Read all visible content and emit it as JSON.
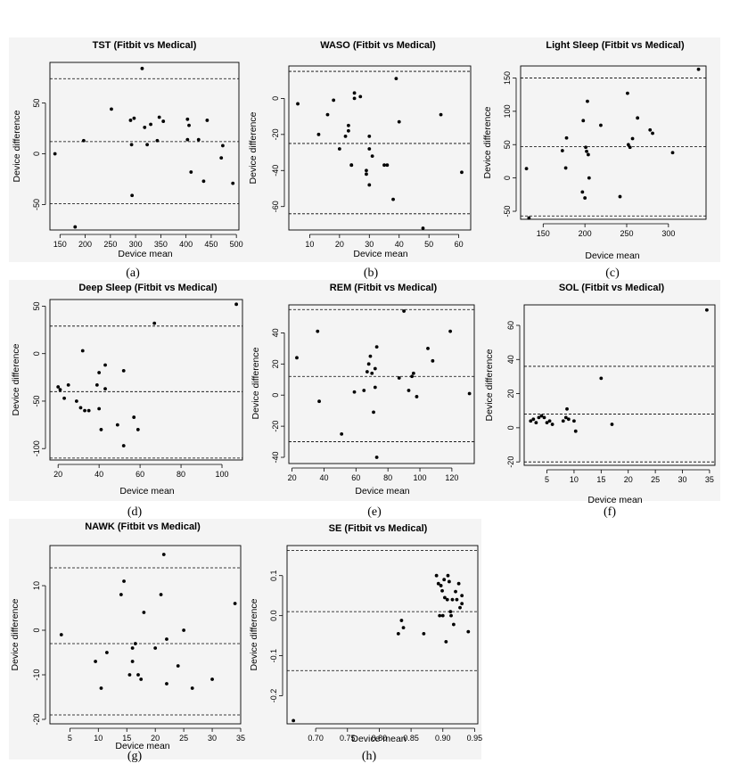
{
  "chart_data": [
    {
      "type": "scatter",
      "title": "TST (Fitbit vs Medical)",
      "xlabel": "Device mean",
      "ylabel": "Device difference",
      "caption": "(a)",
      "xlim": [
        130,
        505
      ],
      "ylim": [
        -75,
        90
      ],
      "xticks": [
        150,
        200,
        250,
        300,
        350,
        400,
        450,
        500
      ],
      "yticks": [
        -50,
        0,
        50
      ],
      "hlines": [
        74,
        12,
        -49
      ],
      "points": [
        [
          140,
          0
        ],
        [
          180,
          -72
        ],
        [
          197,
          13
        ],
        [
          252,
          44
        ],
        [
          290,
          33
        ],
        [
          292,
          9
        ],
        [
          293,
          -41
        ],
        [
          297,
          35
        ],
        [
          313,
          84
        ],
        [
          318,
          26
        ],
        [
          323,
          9
        ],
        [
          330,
          29
        ],
        [
          343,
          13
        ],
        [
          347,
          36
        ],
        [
          355,
          32
        ],
        [
          403,
          34
        ],
        [
          403,
          14
        ],
        [
          406,
          28
        ],
        [
          410,
          -18
        ],
        [
          425,
          14
        ],
        [
          435,
          -27
        ],
        [
          442,
          33
        ],
        [
          470,
          -4
        ],
        [
          473,
          8
        ],
        [
          493,
          -29
        ]
      ]
    },
    {
      "type": "scatter",
      "title": "WASO (Fitbit vs Medical)",
      "xlabel": "Device mean",
      "ylabel": "Device difference",
      "caption": "(b)",
      "xlim": [
        3,
        64
      ],
      "ylim": [
        -73,
        18
      ],
      "xticks": [
        10,
        20,
        30,
        40,
        50,
        60
      ],
      "yticks": [
        -60,
        -40,
        -20,
        0
      ],
      "hlines": [
        15,
        -25,
        -64
      ],
      "points": [
        [
          6,
          -3
        ],
        [
          13,
          -20
        ],
        [
          16,
          -9
        ],
        [
          18,
          -1
        ],
        [
          20,
          -28
        ],
        [
          22,
          -21
        ],
        [
          23,
          -15
        ],
        [
          23,
          -18
        ],
        [
          24,
          -37
        ],
        [
          24,
          -37
        ],
        [
          25,
          3
        ],
        [
          25,
          0
        ],
        [
          27,
          1
        ],
        [
          29,
          -42
        ],
        [
          29,
          -40
        ],
        [
          30,
          -28
        ],
        [
          30,
          -21
        ],
        [
          30,
          -48
        ],
        [
          31,
          -32
        ],
        [
          35,
          -37
        ],
        [
          36,
          -37
        ],
        [
          38,
          -56
        ],
        [
          39,
          11
        ],
        [
          40,
          -13
        ],
        [
          48,
          -72
        ],
        [
          54,
          -9
        ],
        [
          61,
          -41
        ]
      ]
    },
    {
      "type": "scatter",
      "title": "Light Sleep (Fitbit vs Medical)",
      "xlabel": "Device mean",
      "ylabel": "Device difference",
      "caption": "(c)",
      "xlim": [
        123,
        345
      ],
      "ylim": [
        -62,
        168
      ],
      "xticks": [
        150,
        200,
        250,
        300
      ],
      "yticks": [
        -50,
        0,
        50,
        100,
        150
      ],
      "hlines": [
        150,
        47,
        -57
      ],
      "points": [
        [
          130,
          14
        ],
        [
          133,
          -60
        ],
        [
          173,
          41
        ],
        [
          177,
          15
        ],
        [
          178,
          60
        ],
        [
          197,
          -21
        ],
        [
          198,
          86
        ],
        [
          200,
          -30
        ],
        [
          201,
          46
        ],
        [
          202,
          40
        ],
        [
          203,
          115
        ],
        [
          204,
          35
        ],
        [
          205,
          0
        ],
        [
          219,
          79
        ],
        [
          242,
          -28
        ],
        [
          251,
          127
        ],
        [
          252,
          50
        ],
        [
          254,
          46
        ],
        [
          257,
          59
        ],
        [
          263,
          90
        ],
        [
          278,
          72
        ],
        [
          281,
          67
        ],
        [
          305,
          38
        ],
        [
          336,
          163
        ]
      ]
    },
    {
      "type": "scatter",
      "title": "Deep Sleep (Fitbit vs Medical)",
      "xlabel": "Device mean",
      "ylabel": "Device difference",
      "caption": "(d)",
      "xlim": [
        16,
        110
      ],
      "ylim": [
        -112,
        57
      ],
      "xticks": [
        20,
        40,
        60,
        80,
        100
      ],
      "yticks": [
        -100,
        -50,
        0,
        50
      ],
      "hlines": [
        29,
        -40,
        -110
      ],
      "points": [
        [
          20,
          -35
        ],
        [
          21,
          -38
        ],
        [
          23,
          -47
        ],
        [
          25,
          -33
        ],
        [
          29,
          -50
        ],
        [
          31,
          -57
        ],
        [
          32,
          3
        ],
        [
          33,
          -60
        ],
        [
          35,
          -60
        ],
        [
          39,
          -33
        ],
        [
          40,
          -58
        ],
        [
          40,
          -20
        ],
        [
          41,
          -80
        ],
        [
          43,
          -37
        ],
        [
          43,
          -12
        ],
        [
          49,
          -75
        ],
        [
          52,
          -97
        ],
        [
          52,
          -18
        ],
        [
          57,
          -67
        ],
        [
          59,
          -80
        ],
        [
          67,
          32
        ],
        [
          107,
          52
        ]
      ]
    },
    {
      "type": "scatter",
      "title": "REM (Fitbit vs Medical)",
      "xlabel": "Device mean",
      "ylabel": "Device difference",
      "caption": "(e)",
      "xlim": [
        18,
        134
      ],
      "ylim": [
        -44,
        58
      ],
      "xticks": [
        20,
        40,
        60,
        80,
        100,
        120
      ],
      "yticks": [
        -40,
        -20,
        0,
        20,
        40
      ],
      "hlines": [
        55,
        12,
        -30
      ],
      "points": [
        [
          23,
          24
        ],
        [
          36,
          41
        ],
        [
          37,
          -4
        ],
        [
          51,
          -25
        ],
        [
          59,
          2
        ],
        [
          65,
          3
        ],
        [
          67,
          15
        ],
        [
          68,
          20
        ],
        [
          69,
          25
        ],
        [
          70,
          14
        ],
        [
          71,
          -11
        ],
        [
          72,
          17
        ],
        [
          72,
          5
        ],
        [
          73,
          -40
        ],
        [
          73,
          31
        ],
        [
          87,
          11
        ],
        [
          90,
          54
        ],
        [
          93,
          3
        ],
        [
          95,
          12
        ],
        [
          96,
          14
        ],
        [
          98,
          -1
        ],
        [
          105,
          30
        ],
        [
          108,
          22
        ],
        [
          119,
          41
        ],
        [
          131,
          1
        ]
      ]
    },
    {
      "type": "scatter",
      "title": "SOL (Fitbit vs Medical)",
      "xlabel": "Device mean",
      "ylabel": "Device difference",
      "caption": "(f)",
      "xlim": [
        0.8,
        36
      ],
      "ylim": [
        -22,
        72
      ],
      "xticks": [
        5,
        10,
        15,
        20,
        25,
        30,
        35
      ],
      "yticks": [
        -20,
        0,
        20,
        40,
        60
      ],
      "hlines": [
        36,
        8,
        -20
      ],
      "points": [
        [
          2,
          4
        ],
        [
          2.5,
          5
        ],
        [
          3,
          3
        ],
        [
          3.5,
          6
        ],
        [
          4,
          7
        ],
        [
          4.5,
          6
        ],
        [
          5,
          3
        ],
        [
          5.5,
          4
        ],
        [
          6,
          2
        ],
        [
          8,
          4
        ],
        [
          8.5,
          6
        ],
        [
          8.7,
          11
        ],
        [
          9,
          5
        ],
        [
          10,
          4
        ],
        [
          10.3,
          -2
        ],
        [
          15,
          29
        ],
        [
          17,
          2
        ],
        [
          34.5,
          69
        ]
      ]
    },
    {
      "type": "scatter",
      "title": "NAWK (Fitbit vs Medical)",
      "xlabel": "Device mean",
      "ylabel": "Device difference",
      "caption": "(g)",
      "xlim": [
        1.5,
        35
      ],
      "ylim": [
        -21,
        19
      ],
      "xticks": [
        5,
        10,
        15,
        20,
        25,
        30,
        35
      ],
      "yticks": [
        -20,
        -10,
        0,
        10
      ],
      "hlines": [
        14,
        -3,
        -19
      ],
      "points": [
        [
          3.5,
          -1
        ],
        [
          9.5,
          -7
        ],
        [
          10.5,
          -13
        ],
        [
          11.5,
          -5
        ],
        [
          14,
          8
        ],
        [
          14.5,
          11
        ],
        [
          15.5,
          -10
        ],
        [
          16,
          -4
        ],
        [
          16,
          -7
        ],
        [
          16.5,
          -3
        ],
        [
          17,
          -10
        ],
        [
          17.5,
          -11
        ],
        [
          18,
          4
        ],
        [
          20,
          -4
        ],
        [
          21,
          8
        ],
        [
          21.5,
          17
        ],
        [
          22,
          -2
        ],
        [
          22,
          -12
        ],
        [
          24,
          -8
        ],
        [
          25,
          0
        ],
        [
          26.5,
          -13
        ],
        [
          30,
          -11
        ],
        [
          34,
          6
        ]
      ]
    },
    {
      "type": "scatter",
      "title": "SE (Fitbit vs Medical)",
      "xlabel": "Device mean",
      "ylabel": "Device difference",
      "caption": "(h)",
      "xlim": [
        0.655,
        0.955
      ],
      "ylim": [
        -0.27,
        0.175
      ],
      "xticks": [
        0.7,
        0.75,
        0.8,
        0.85,
        0.9,
        0.95
      ],
      "yticks": [
        -0.2,
        -0.1,
        0.0,
        0.1
      ],
      "hlines": [
        0.163,
        0.01,
        -0.137
      ],
      "points": [
        [
          0.665,
          -0.262
        ],
        [
          0.83,
          -0.045
        ],
        [
          0.835,
          -0.012
        ],
        [
          0.838,
          -0.03
        ],
        [
          0.87,
          -0.045
        ],
        [
          0.89,
          0.1
        ],
        [
          0.893,
          0.08
        ],
        [
          0.895,
          0.0
        ],
        [
          0.897,
          0.075
        ],
        [
          0.899,
          0.062
        ],
        [
          0.9,
          0.0
        ],
        [
          0.902,
          0.09
        ],
        [
          0.903,
          0.045
        ],
        [
          0.905,
          -0.065
        ],
        [
          0.907,
          0.04
        ],
        [
          0.908,
          0.1
        ],
        [
          0.91,
          0.085
        ],
        [
          0.912,
          0.01
        ],
        [
          0.913,
          0.0
        ],
        [
          0.915,
          0.04
        ],
        [
          0.917,
          -0.022
        ],
        [
          0.92,
          0.06
        ],
        [
          0.922,
          0.04
        ],
        [
          0.925,
          0.08
        ],
        [
          0.927,
          0.02
        ],
        [
          0.93,
          0.05
        ],
        [
          0.93,
          0.03
        ],
        [
          0.94,
          -0.04
        ]
      ]
    }
  ]
}
